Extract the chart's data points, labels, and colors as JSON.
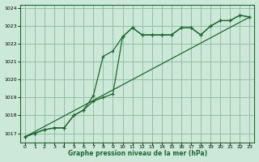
{
  "title": "Graphe pression niveau de la mer (hPa)",
  "background_color": "#cce8d8",
  "plot_bg_color": "#cce8d8",
  "grid_color": "#88bb99",
  "line_color": "#1a6b2a",
  "xlim": [
    -0.5,
    23.5
  ],
  "ylim": [
    1016.5,
    1024.2
  ],
  "yticks": [
    1017,
    1018,
    1019,
    1020,
    1021,
    1022,
    1023,
    1024
  ],
  "xticks": [
    0,
    1,
    2,
    3,
    4,
    5,
    6,
    7,
    8,
    9,
    10,
    11,
    12,
    13,
    14,
    15,
    16,
    17,
    18,
    19,
    20,
    21,
    22,
    23
  ],
  "series1_x": [
    0,
    1,
    2,
    3,
    4,
    5,
    6,
    7,
    8,
    9,
    10,
    11,
    12,
    13,
    14,
    15,
    16,
    17,
    18,
    19,
    20,
    21,
    22,
    23
  ],
  "series1_y": [
    1016.8,
    1017.0,
    1017.2,
    1017.3,
    1017.3,
    1018.0,
    1018.3,
    1018.8,
    1019.0,
    1019.2,
    1022.4,
    1022.9,
    1022.5,
    1022.5,
    1022.5,
    1022.5,
    1022.9,
    1022.9,
    1022.5,
    1023.0,
    1023.3,
    1023.3,
    1023.6,
    1023.5
  ],
  "series2_x": [
    0,
    1,
    2,
    3,
    4,
    5,
    6,
    7,
    8,
    9,
    10,
    11,
    12,
    13,
    14,
    15,
    16,
    17,
    18,
    19,
    20,
    21,
    22,
    23
  ],
  "series2_y": [
    1016.8,
    1017.0,
    1017.2,
    1017.3,
    1017.3,
    1018.0,
    1018.3,
    1019.1,
    1021.3,
    1021.6,
    1022.4,
    1022.9,
    1022.5,
    1022.5,
    1022.5,
    1022.5,
    1022.9,
    1022.9,
    1022.5,
    1023.0,
    1023.3,
    1023.3,
    1023.6,
    1023.5
  ],
  "series3_x": [
    0,
    23
  ],
  "series3_y": [
    1016.8,
    1023.5
  ]
}
